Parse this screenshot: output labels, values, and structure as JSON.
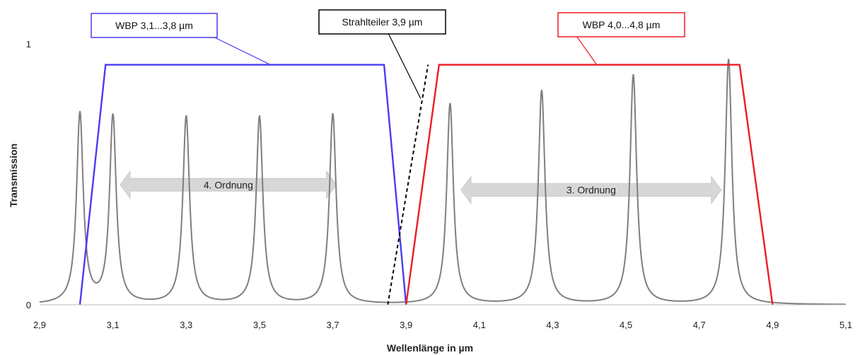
{
  "chart_data": {
    "type": "line",
    "title": "",
    "xlabel": "Wellenlänge in µm",
    "ylabel": "Transmission",
    "xlim": [
      2.9,
      5.1
    ],
    "ylim": [
      0,
      1
    ],
    "x_ticks": [
      "2,9",
      "3,1",
      "3,3",
      "3,5",
      "3,7",
      "3,9",
      "4,1",
      "4,3",
      "4,5",
      "4,7",
      "4,9",
      "5,1"
    ],
    "x_tick_values": [
      2.9,
      3.1,
      3.3,
      3.5,
      3.7,
      3.9,
      4.1,
      4.3,
      4.5,
      4.7,
      4.9,
      5.1
    ],
    "y_ticks": [
      "0",
      "1"
    ],
    "y_tick_values": [
      0,
      1
    ],
    "grid": false,
    "series": [
      {
        "name": "",
        "color": "#7f7f7f",
        "kind": "fabry-perot-peaks",
        "peaks": [
          {
            "x": 3.01,
            "y": 0.73
          },
          {
            "x": 3.1,
            "y": 0.72
          },
          {
            "x": 3.3,
            "y": 0.72
          },
          {
            "x": 3.5,
            "y": 0.72
          },
          {
            "x": 3.7,
            "y": 0.73
          },
          {
            "x": 4.02,
            "y": 0.77
          },
          {
            "x": 4.27,
            "y": 0.82
          },
          {
            "x": 4.52,
            "y": 0.88
          },
          {
            "x": 4.78,
            "y": 0.94
          }
        ]
      },
      {
        "name": "WBP 3,1...3,8 µm",
        "color": "#4a3cf0",
        "points": [
          [
            3.01,
            0
          ],
          [
            3.08,
            0.92
          ],
          [
            3.84,
            0.92
          ],
          [
            3.9,
            0
          ]
        ]
      },
      {
        "name": "WBP 4,0...4,8 µm",
        "color": "#ee1c25",
        "points": [
          [
            3.9,
            0
          ],
          [
            3.99,
            0.92
          ],
          [
            4.81,
            0.92
          ],
          [
            4.9,
            0
          ]
        ]
      },
      {
        "name": "Strahlteiler 3,9 µm",
        "color": "#000000",
        "dashed": true,
        "points": [
          [
            3.85,
            0
          ],
          [
            3.96,
            0.92
          ]
        ]
      }
    ],
    "annotations": [
      {
        "id": "wbp1",
        "label": "WBP 3,1...3,8 µm",
        "color": "#4a3cf0",
        "points_to": [
          3.53,
          0.92
        ]
      },
      {
        "id": "strahlteiler",
        "label": "Strahlteiler 3,9 µm",
        "color": "#000000",
        "points_to": [
          3.94,
          0.79
        ]
      },
      {
        "id": "wbp2",
        "label": "WBP 4,0...4,8 µm",
        "color": "#ee1c25",
        "points_to": [
          4.42,
          0.92
        ]
      }
    ],
    "order_arrows": [
      {
        "id": "order4",
        "label": "4. Ordnung",
        "x_from": 3.12,
        "x_to": 3.71,
        "y": 0.46
      },
      {
        "id": "order3",
        "label": "3. Ordnung",
        "x_from": 4.05,
        "x_to": 4.76,
        "y": 0.44
      }
    ]
  }
}
